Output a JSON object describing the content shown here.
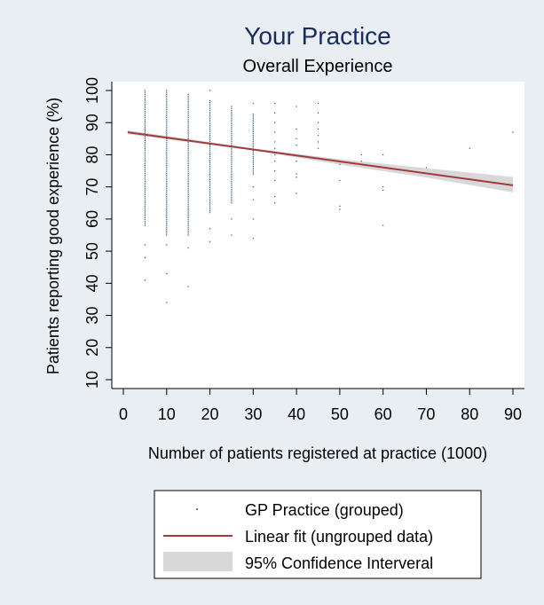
{
  "chart_data": {
    "type": "scatter",
    "title": "Your Practice",
    "subtitle": "Overall Experience",
    "xlabel": "Number of patients registered at practice (1000)",
    "ylabel": "Patients reporting good experience (%)",
    "xlim": [
      0,
      92
    ],
    "ylim": [
      10,
      100
    ],
    "xticks": [
      0,
      10,
      20,
      30,
      40,
      50,
      60,
      70,
      80,
      90
    ],
    "yticks": [
      10,
      20,
      30,
      40,
      50,
      60,
      70,
      80,
      90,
      100
    ],
    "grid": false,
    "legend_placement": "bottom",
    "colors": {
      "background": "#e9eef3",
      "plot_area": "#ffffff",
      "points": "#1f4e79",
      "fit_line": "#a33a3a",
      "ci_band": "#d8d8d8"
    },
    "series": [
      {
        "name": "GP Practice (grouped)",
        "kind": "points",
        "points": [
          {
            "x": 5,
            "y_min": 58,
            "y_max": 100
          },
          {
            "x": 5,
            "y": 52
          },
          {
            "x": 5,
            "y": 48
          },
          {
            "x": 5,
            "y": 41
          },
          {
            "x": 10,
            "y_min": 55,
            "y_max": 100
          },
          {
            "x": 10,
            "y": 52
          },
          {
            "x": 10,
            "y": 43
          },
          {
            "x": 10,
            "y": 34
          },
          {
            "x": 15,
            "y_min": 55,
            "y_max": 99
          },
          {
            "x": 15,
            "y": 51
          },
          {
            "x": 15,
            "y": 39
          },
          {
            "x": 20,
            "y_min": 62,
            "y_max": 97
          },
          {
            "x": 20,
            "y": 57
          },
          {
            "x": 20,
            "y": 53
          },
          {
            "x": 20,
            "y": 100
          },
          {
            "x": 25,
            "y_min": 65,
            "y_max": 95
          },
          {
            "x": 25,
            "y": 60
          },
          {
            "x": 25,
            "y": 55
          },
          {
            "x": 30,
            "y_min": 74,
            "y_max": 93
          },
          {
            "x": 30,
            "y": 96
          },
          {
            "x": 30,
            "y": 70
          },
          {
            "x": 30,
            "y": 66
          },
          {
            "x": 30,
            "y": 60
          },
          {
            "x": 30,
            "y": 54
          },
          {
            "x": 35,
            "y": 96
          },
          {
            "x": 35,
            "y": 93
          },
          {
            "x": 35,
            "y": 90
          },
          {
            "x": 35,
            "y": 87
          },
          {
            "x": 35,
            "y": 84
          },
          {
            "x": 35,
            "y": 82
          },
          {
            "x": 35,
            "y": 80
          },
          {
            "x": 35,
            "y": 78
          },
          {
            "x": 35,
            "y": 75
          },
          {
            "x": 35,
            "y": 72
          },
          {
            "x": 35,
            "y": 67
          },
          {
            "x": 35,
            "y": 65
          },
          {
            "x": 40,
            "y": 95
          },
          {
            "x": 40,
            "y": 88
          },
          {
            "x": 40,
            "y": 85
          },
          {
            "x": 40,
            "y": 83
          },
          {
            "x": 40,
            "y": 78
          },
          {
            "x": 40,
            "y": 74
          },
          {
            "x": 40,
            "y": 73
          },
          {
            "x": 40,
            "y": 68
          },
          {
            "x": 45,
            "y": 96
          },
          {
            "x": 45,
            "y": 93
          },
          {
            "x": 45,
            "y": 90
          },
          {
            "x": 45,
            "y": 88
          },
          {
            "x": 45,
            "y": 86
          },
          {
            "x": 45,
            "y": 84
          },
          {
            "x": 45,
            "y": 82
          },
          {
            "x": 45,
            "y": 79
          },
          {
            "x": 50,
            "y": 77
          },
          {
            "x": 50,
            "y": 72
          },
          {
            "x": 50,
            "y": 64
          },
          {
            "x": 50,
            "y": 63
          },
          {
            "x": 55,
            "y": 80
          },
          {
            "x": 55,
            "y": 78
          },
          {
            "x": 60,
            "y": 80
          },
          {
            "x": 60,
            "y": 70
          },
          {
            "x": 60,
            "y": 69
          },
          {
            "x": 60,
            "y": 58
          },
          {
            "x": 70,
            "y": 76
          },
          {
            "x": 80,
            "y": 82
          },
          {
            "x": 90,
            "y": 87
          }
        ]
      },
      {
        "name": "Linear fit (ungrouped data)",
        "kind": "line",
        "x": [
          1,
          90
        ],
        "y": [
          87,
          70.5
        ]
      },
      {
        "name": "95% Confidence Interveral",
        "kind": "band",
        "x": [
          1,
          30,
          50,
          70,
          90
        ],
        "lower": [
          86.4,
          81.4,
          76.9,
          72.9,
          68.3
        ],
        "upper": [
          87.6,
          82.0,
          78.6,
          75.8,
          73.1
        ]
      }
    ]
  }
}
